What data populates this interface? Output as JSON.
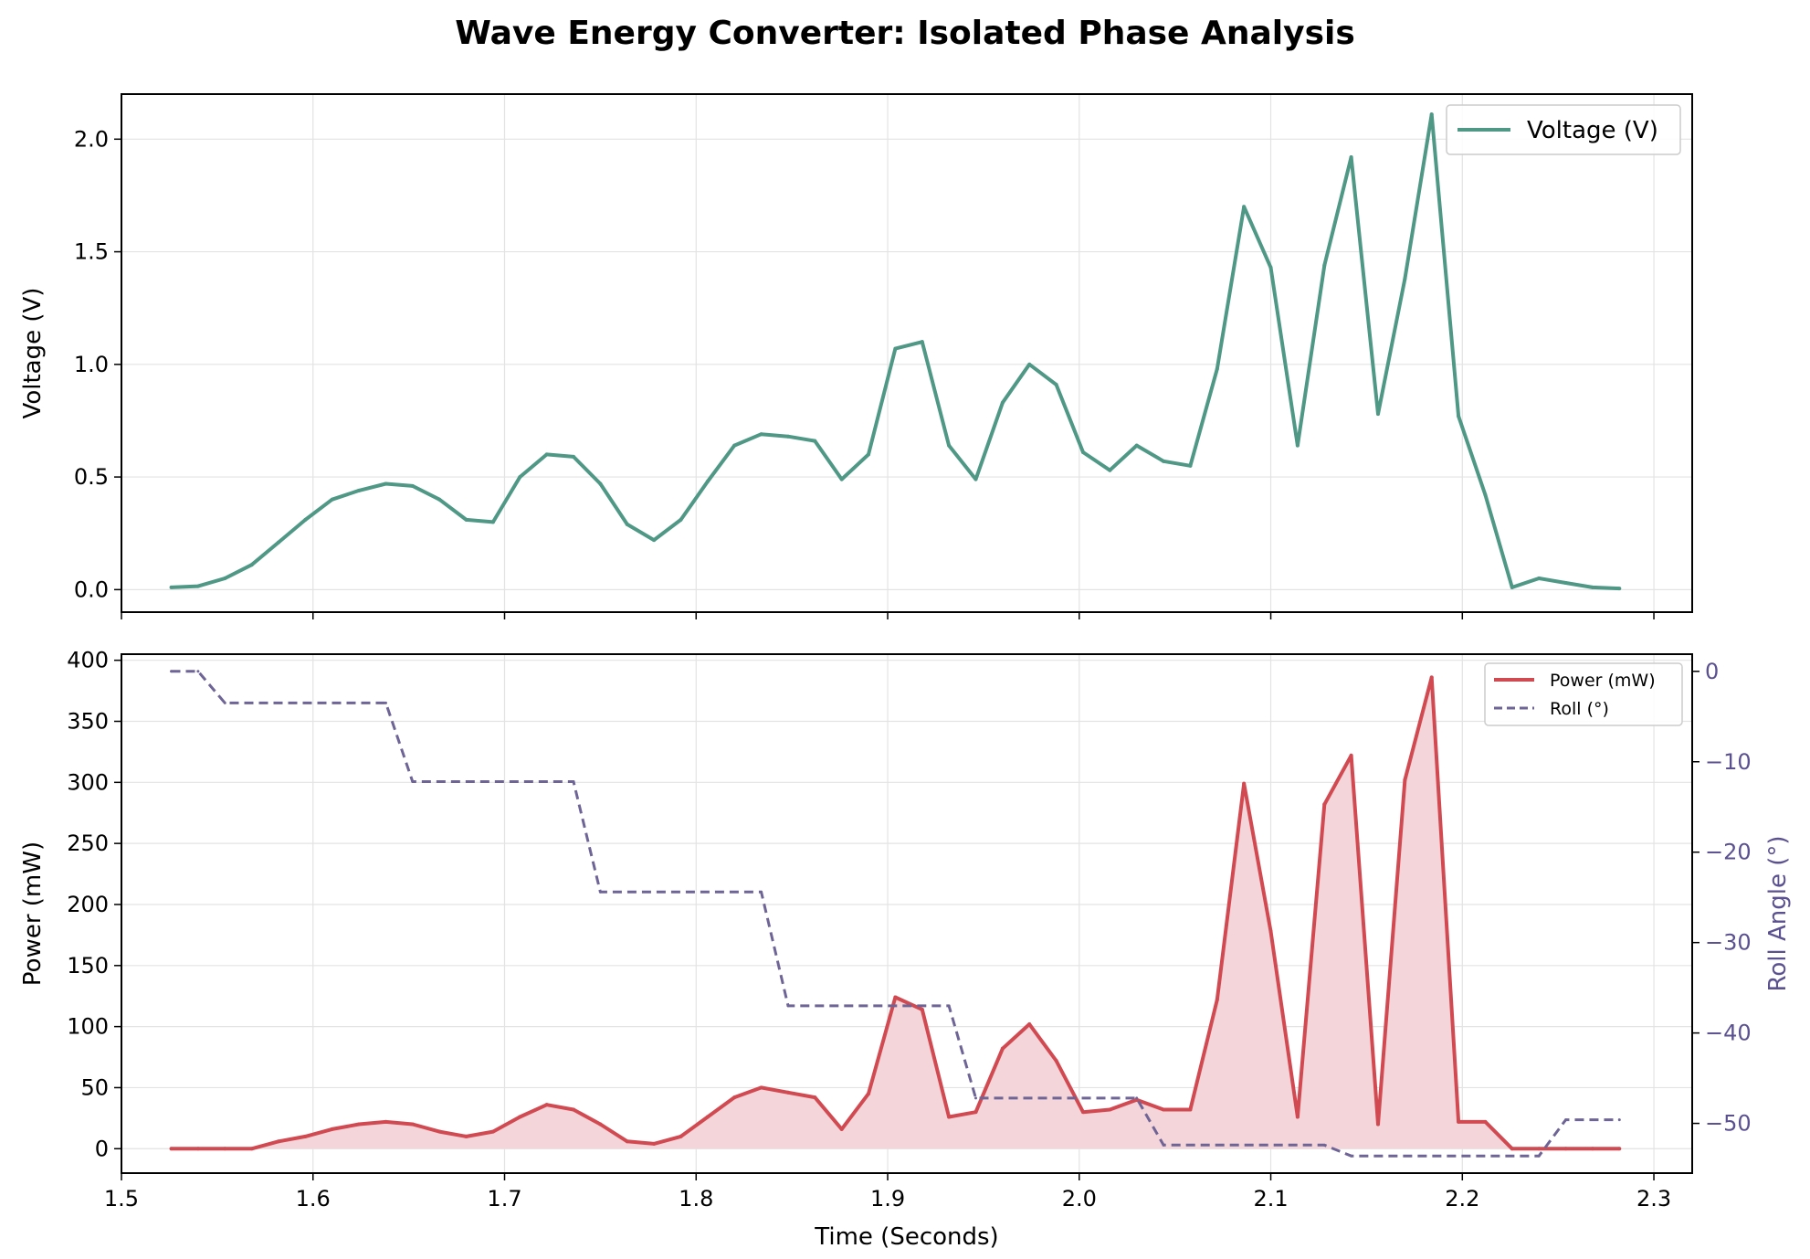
{
  "title": "Wave Energy Converter: Isolated Phase Analysis",
  "colors": {
    "voltage": "#4f9886",
    "power": "#d24a51",
    "power_fill": "#f4d5d9",
    "roll": "#6f6496",
    "roll_axis": "#5c5190",
    "grid": "#e3e3e3"
  },
  "chart_data": [
    {
      "type": "line",
      "panel": "top",
      "xlabel": "",
      "ylabel": "Voltage (V)",
      "xlim": [
        1.5,
        2.32
      ],
      "ylim": [
        -0.1,
        2.2
      ],
      "xticks": [
        1.5,
        1.6,
        1.7,
        1.8,
        1.9,
        2.0,
        2.1,
        2.2,
        2.3
      ],
      "yticks": [
        0.0,
        0.5,
        1.0,
        1.5,
        2.0
      ],
      "ytick_labels": [
        "0.0",
        "0.5",
        "1.0",
        "1.5",
        "2.0"
      ],
      "grid": true,
      "legend_position": "top-right",
      "series": [
        {
          "name": "Voltage (V)",
          "x": [
            1.526,
            1.54,
            1.554,
            1.568,
            1.582,
            1.596,
            1.61,
            1.624,
            1.638,
            1.652,
            1.666,
            1.68,
            1.694,
            1.708,
            1.722,
            1.736,
            1.75,
            1.764,
            1.778,
            1.792,
            1.806,
            1.82,
            1.834,
            1.848,
            1.862,
            1.876,
            1.89,
            1.904,
            1.918,
            1.932,
            1.946,
            1.96,
            1.974,
            1.988,
            2.002,
            2.016,
            2.03,
            2.044,
            2.058,
            2.072,
            2.086,
            2.1,
            2.114,
            2.128,
            2.142,
            2.156,
            2.17,
            2.184,
            2.198,
            2.212,
            2.226,
            2.24,
            2.254,
            2.268,
            2.282
          ],
          "y": [
            0.01,
            0.015,
            0.05,
            0.11,
            0.21,
            0.31,
            0.4,
            0.44,
            0.47,
            0.46,
            0.4,
            0.31,
            0.3,
            0.5,
            0.6,
            0.59,
            0.47,
            0.29,
            0.22,
            0.31,
            0.48,
            0.64,
            0.69,
            0.68,
            0.66,
            0.49,
            0.6,
            1.07,
            1.1,
            0.64,
            0.49,
            0.83,
            1.0,
            0.91,
            0.61,
            0.53,
            0.64,
            0.57,
            0.55,
            0.98,
            1.7,
            1.43,
            0.64,
            1.44,
            1.92,
            0.78,
            1.38,
            2.11,
            0.77,
            0.42,
            0.01,
            0.05,
            0.03,
            0.01,
            0.005
          ]
        }
      ]
    },
    {
      "type": "area",
      "panel": "bottom",
      "xlabel": "Time (Seconds)",
      "ylabel": "Power (mW)",
      "y2label": "Roll Angle (°)",
      "xlim": [
        1.5,
        2.32
      ],
      "ylim": [
        -20,
        405
      ],
      "y2lim": [
        -55.5,
        1.9
      ],
      "xticks": [
        1.5,
        1.6,
        1.7,
        1.8,
        1.9,
        2.0,
        2.1,
        2.2,
        2.3
      ],
      "xtick_labels": [
        "1.5",
        "1.6",
        "1.7",
        "1.8",
        "1.9",
        "2.0",
        "2.1",
        "2.2",
        "2.3"
      ],
      "yticks": [
        0,
        50,
        100,
        150,
        200,
        250,
        300,
        350,
        400
      ],
      "ytick_labels": [
        "0",
        "50",
        "100",
        "150",
        "200",
        "250",
        "300",
        "350",
        "400"
      ],
      "y2ticks": [
        0,
        -10,
        -20,
        -30,
        -40,
        -50
      ],
      "y2tick_labels": [
        "0",
        "−10",
        "−20",
        "−30",
        "−40",
        "−50"
      ],
      "grid": true,
      "legend_position": "top-right",
      "series": [
        {
          "name": "Power (mW)",
          "axis": "left",
          "x": [
            1.526,
            1.54,
            1.554,
            1.568,
            1.582,
            1.596,
            1.61,
            1.624,
            1.638,
            1.652,
            1.666,
            1.68,
            1.694,
            1.708,
            1.722,
            1.736,
            1.75,
            1.764,
            1.778,
            1.792,
            1.806,
            1.82,
            1.834,
            1.848,
            1.862,
            1.876,
            1.89,
            1.904,
            1.918,
            1.932,
            1.946,
            1.96,
            1.974,
            1.988,
            2.002,
            2.016,
            2.03,
            2.044,
            2.058,
            2.072,
            2.086,
            2.1,
            2.114,
            2.128,
            2.142,
            2.156,
            2.17,
            2.184,
            2.198,
            2.212,
            2.226,
            2.24,
            2.254,
            2.268,
            2.282
          ],
          "y": [
            0,
            0,
            0,
            0,
            6,
            10,
            16,
            20,
            22,
            20,
            14,
            10,
            14,
            26,
            36,
            32,
            20,
            6,
            4,
            10,
            26,
            42,
            50,
            46,
            42,
            16,
            45,
            124,
            114,
            26,
            30,
            82,
            102,
            72,
            30,
            32,
            40,
            32,
            32,
            122,
            299,
            178,
            26,
            282,
            322,
            20,
            302,
            386,
            22,
            22,
            0,
            0,
            0,
            0,
            0
          ]
        },
        {
          "name": "Roll (°)",
          "axis": "right",
          "style": "dashed",
          "x": [
            1.526,
            1.54,
            1.554,
            1.638,
            1.652,
            1.736,
            1.75,
            1.834,
            1.848,
            1.932,
            1.946,
            2.03,
            2.044,
            2.128,
            2.142,
            2.24,
            2.254,
            2.282
          ],
          "y": [
            0,
            0,
            -3.5,
            -3.5,
            -12.2,
            -12.2,
            -24.4,
            -24.4,
            -37,
            -37,
            -47.2,
            -47.2,
            -52.4,
            -52.4,
            -53.6,
            -53.6,
            -49.6,
            -49.6
          ]
        }
      ]
    }
  ]
}
